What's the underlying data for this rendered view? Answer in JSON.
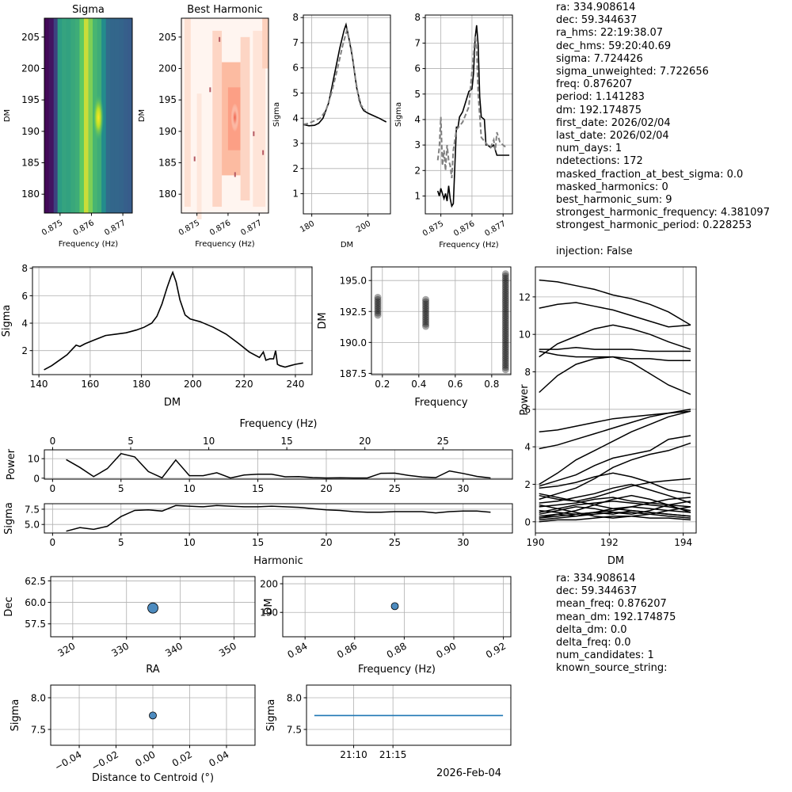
{
  "info_top": {
    "lines": [
      "ra: 334.908614",
      "dec: 59.344637",
      "ra_hms: 22:19:38.07",
      "dec_hms: 59:20:40.69",
      "sigma: 7.724426",
      "sigma_unweighted: 7.722656",
      "freq: 0.876207",
      "period: 1.141283",
      "dm: 192.174875",
      "first_date: 2026/02/04",
      "last_date: 2026/02/04",
      "num_days: 1",
      "ndetections: 172",
      "masked_fraction_at_best_sigma: 0.0",
      "masked_harmonics: 0",
      "best_harmonic_sum: 9",
      "strongest_harmonic_frequency: 4.381097",
      "strongest_harmonic_period: 0.228253",
      "",
      "injection: False"
    ]
  },
  "info_bottom": {
    "lines": [
      "ra: 334.908614",
      "dec: 59.344637",
      "mean_freq: 0.876207",
      "mean_dm: 192.174875",
      "delta_dm: 0.0",
      "delta_freq: 0.0",
      "num_candidates: 1",
      "known_source_string:"
    ]
  },
  "colors": {
    "line": "#000000",
    "gray_dashed": "#808080",
    "marker": "#4d8bbf",
    "grid": "#b0b0b0",
    "blue_line": "#1f77b4"
  },
  "chart_data": [
    {
      "id": "sigma-heatmap",
      "type": "heatmap",
      "title": "Sigma",
      "xlabel": "Frequency (Hz)",
      "ylabel": "DM",
      "xlim": [
        0.8745,
        0.8773
      ],
      "ylim": [
        177,
        208
      ],
      "xticks": [
        "0.875",
        "0.876",
        "0.877"
      ],
      "yticks": [
        "180",
        "185",
        "190",
        "195",
        "200",
        "205"
      ],
      "colormap": "viridis",
      "columns": [
        0.05,
        0.12,
        0.2,
        0.55,
        0.58,
        0.57,
        0.6,
        0.62,
        0.75,
        0.92,
        0.8,
        0.66,
        0.62,
        0.48,
        0.35,
        0.33,
        0.33,
        0.32,
        0.3,
        0.29
      ]
    },
    {
      "id": "best-harmonic-heatmap",
      "type": "heatmap",
      "title": "Best Harmonic",
      "xlabel": "Frequency (Hz)",
      "ylabel": "DM",
      "xlim": [
        0.8745,
        0.8773
      ],
      "ylim": [
        177,
        208
      ],
      "xticks": [
        "0.875",
        "0.876",
        "0.877"
      ],
      "yticks": [
        "180",
        "185",
        "190",
        "195",
        "200",
        "205"
      ],
      "colormap": "reds"
    },
    {
      "id": "sigma-vs-dm-small",
      "type": "line",
      "xlabel": "DM",
      "ylabel": "Sigma",
      "xlim": [
        177,
        208
      ],
      "ylim": [
        0.2,
        8.1
      ],
      "xticks": [
        180,
        200
      ],
      "yticks": [
        1,
        2,
        3,
        4,
        5,
        6,
        7,
        8
      ],
      "series": [
        {
          "style": "solid",
          "x": [
            177,
            179,
            181,
            182.5,
            184,
            186,
            188,
            190,
            191.5,
            192.2,
            193,
            194.5,
            196,
            197.5,
            198.5,
            200,
            202,
            204,
            206.5
          ],
          "y": [
            3.75,
            3.7,
            3.72,
            3.8,
            4.0,
            4.6,
            5.7,
            6.8,
            7.5,
            7.72,
            7.3,
            6.4,
            5.2,
            4.5,
            4.3,
            4.2,
            4.1,
            4.0,
            3.85
          ]
        },
        {
          "style": "dashed",
          "x": [
            177,
            179,
            181,
            183,
            185,
            187,
            189,
            191,
            192.5,
            194,
            195.5,
            197,
            199
          ],
          "y": [
            3.75,
            3.8,
            3.9,
            4.0,
            4.3,
            5.0,
            5.9,
            6.9,
            7.5,
            6.8,
            5.6,
            4.6,
            4.3
          ]
        }
      ]
    },
    {
      "id": "sigma-vs-freq-small",
      "type": "line",
      "xlabel": "Frequency (Hz)",
      "ylabel": "Sigma",
      "xlim": [
        0.8745,
        0.8773
      ],
      "ylim": [
        0.3,
        8.1
      ],
      "xticks": [
        "0.875",
        "0.876",
        "0.877"
      ],
      "yticks": [
        1,
        2,
        3,
        4,
        5,
        6,
        7,
        8
      ],
      "series": [
        {
          "style": "solid",
          "x": [
            0.8749,
            0.87495,
            0.875,
            0.8751,
            0.87515,
            0.8752,
            0.87525,
            0.8753,
            0.87535,
            0.8754,
            0.8755,
            0.87555,
            0.8756,
            0.8757,
            0.8758,
            0.8759,
            0.876,
            0.87605,
            0.8761,
            0.87615,
            0.8762,
            0.87625,
            0.8763,
            0.8764,
            0.87645,
            0.8765,
            0.8766,
            0.8767,
            0.8768,
            0.8769,
            0.877,
            0.8771,
            0.8772
          ],
          "y": [
            1.2,
            1.0,
            1.3,
            0.9,
            1.1,
            0.8,
            1.4,
            0.9,
            0.6,
            0.7,
            3.7,
            3.7,
            4.1,
            4.3,
            4.7,
            5.1,
            5.2,
            5.8,
            7.2,
            7.7,
            6.9,
            4.9,
            4.1,
            4.0,
            3.0,
            3.0,
            2.9,
            3.0,
            2.6,
            2.6,
            2.6,
            2.6,
            2.6
          ]
        },
        {
          "style": "dashed",
          "x": [
            0.8749,
            0.87495,
            0.875,
            0.87505,
            0.8751,
            0.87515,
            0.8752,
            0.87525,
            0.8753,
            0.87535,
            0.8754,
            0.8755,
            0.8757,
            0.8759,
            0.8761,
            0.87615,
            0.8762,
            0.8763,
            0.8765,
            0.8766,
            0.8767,
            0.87675,
            0.8768,
            0.8769,
            0.877,
            0.8771
          ],
          "y": [
            2.4,
            2.9,
            4.1,
            2.2,
            2.8,
            2.0,
            3.0,
            2.4,
            2.2,
            1.7,
            2.8,
            3.6,
            3.9,
            4.5,
            7.3,
            6.8,
            5.0,
            3.3,
            3.0,
            2.9,
            3.2,
            2.8,
            3.5,
            3.1,
            3.0,
            2.9
          ]
        }
      ]
    },
    {
      "id": "sigma-vs-dm-wide",
      "type": "line",
      "xlabel": "DM",
      "ylabel": "Sigma",
      "xlim": [
        137.5,
        246.5
      ],
      "ylim": [
        0.25,
        8.1
      ],
      "xticks": [
        140,
        160,
        180,
        200,
        220,
        240
      ],
      "yticks": [
        2,
        4,
        6,
        8
      ],
      "series": [
        {
          "style": "solid",
          "x": [
            142,
            145,
            148,
            151,
            153,
            154.5,
            156,
            158,
            162,
            166,
            170,
            174,
            178,
            181,
            184,
            186,
            188,
            190,
            191.5,
            192.2,
            193.5,
            195,
            197,
            199,
            203,
            208,
            213,
            218,
            222,
            226,
            227.5,
            228.5,
            230,
            231.5,
            232.3,
            233,
            234,
            236,
            238,
            240,
            243
          ],
          "y": [
            0.6,
            0.9,
            1.3,
            1.7,
            2.1,
            2.4,
            2.3,
            2.5,
            2.8,
            3.1,
            3.2,
            3.3,
            3.5,
            3.7,
            4.0,
            4.5,
            5.4,
            6.6,
            7.4,
            7.7,
            7.0,
            5.7,
            4.6,
            4.3,
            4.1,
            3.7,
            3.2,
            2.5,
            1.9,
            1.5,
            1.9,
            1.3,
            1.4,
            1.4,
            2.0,
            1.0,
            0.9,
            0.8,
            0.9,
            1.0,
            1.1
          ]
        }
      ]
    },
    {
      "id": "dm-vs-frequency-scatter",
      "type": "scatter",
      "xlabel": "Frequency",
      "ylabel": "DM",
      "xlim": [
        0.14,
        0.905
      ],
      "ylim": [
        187.4,
        196.1
      ],
      "xticks": [
        "0.2",
        "0.4",
        "0.6",
        "0.8"
      ],
      "yticks": [
        "187.5",
        "190.0",
        "192.5",
        "195.0"
      ],
      "columns": [
        {
          "x": 0.175,
          "y_min": 192.2,
          "y_max": 193.7
        },
        {
          "x": 0.438,
          "y_min": 191.3,
          "y_max": 193.5
        },
        {
          "x": 0.876,
          "y_min": 187.8,
          "y_max": 195.6
        }
      ]
    },
    {
      "id": "power-vs-dm",
      "type": "line",
      "xlabel": "DM",
      "ylabel": "Power",
      "xlim": [
        190.0,
        194.35
      ],
      "ylim": [
        -0.6,
        13.6
      ],
      "xticks": [
        190,
        192,
        194
      ],
      "yticks": [
        0,
        2,
        4,
        6,
        8,
        10,
        12
      ],
      "x": [
        190.1,
        190.6,
        191.1,
        191.6,
        192.1,
        192.6,
        193.1,
        193.6,
        194.2
      ],
      "series": [
        {
          "values": [
            12.9,
            12.8,
            12.6,
            12.4,
            12.1,
            11.9,
            11.6,
            11.2,
            10.5
          ]
        },
        {
          "values": [
            11.4,
            11.6,
            11.7,
            11.5,
            11.3,
            11.0,
            10.7,
            10.4,
            10.5
          ]
        },
        {
          "values": [
            9.2,
            9.2,
            9.3,
            9.2,
            9.2,
            9.2,
            9.1,
            9.1,
            9.1
          ]
        },
        {
          "values": [
            8.8,
            9.5,
            9.9,
            10.3,
            10.5,
            10.3,
            10.0,
            9.6,
            9.2
          ]
        },
        {
          "values": [
            6.9,
            7.8,
            8.4,
            8.7,
            8.8,
            8.5,
            7.9,
            7.3,
            6.8
          ]
        },
        {
          "values": [
            9.1,
            8.9,
            8.8,
            8.8,
            8.8,
            8.7,
            8.7,
            8.6,
            8.6
          ]
        },
        {
          "values": [
            4.8,
            4.9,
            5.1,
            5.3,
            5.5,
            5.6,
            5.7,
            5.8,
            5.9
          ]
        },
        {
          "values": [
            3.9,
            4.1,
            4.4,
            4.7,
            5.0,
            5.3,
            5.6,
            5.8,
            6.0
          ]
        },
        {
          "values": [
            2.0,
            2.6,
            3.3,
            3.8,
            4.3,
            4.8,
            5.2,
            5.6,
            5.9
          ]
        },
        {
          "values": [
            1.9,
            2.2,
            2.5,
            3.0,
            3.4,
            3.6,
            3.8,
            4.4,
            4.6
          ]
        },
        {
          "values": [
            1.2,
            1.5,
            1.8,
            2.3,
            2.9,
            3.3,
            3.6,
            3.8,
            4.2
          ]
        },
        {
          "values": [
            1.8,
            1.9,
            2.1,
            2.4,
            2.6,
            2.4,
            2.1,
            1.7,
            1.5
          ]
        },
        {
          "values": [
            1.4,
            1.2,
            1.1,
            1.3,
            1.6,
            1.9,
            2.1,
            2.2,
            2.3
          ]
        },
        {
          "values": [
            1.0,
            1.1,
            1.3,
            1.5,
            1.8,
            2.0,
            1.7,
            1.4,
            1.0
          ]
        },
        {
          "values": [
            0.8,
            0.9,
            1.0,
            1.2,
            1.3,
            1.1,
            1.0,
            0.9,
            0.8
          ]
        },
        {
          "values": [
            0.5,
            0.7,
            0.9,
            1.0,
            1.1,
            1.0,
            0.9,
            0.8,
            0.6
          ]
        },
        {
          "values": [
            0.3,
            0.4,
            0.6,
            0.9,
            1.2,
            1.4,
            1.2,
            0.9,
            0.5
          ]
        },
        {
          "values": [
            0.2,
            0.3,
            0.4,
            0.5,
            0.7,
            0.8,
            0.7,
            0.6,
            0.5
          ]
        },
        {
          "values": [
            0.1,
            0.2,
            0.3,
            0.4,
            0.5,
            0.5,
            0.4,
            0.3,
            0.2
          ]
        },
        {
          "values": [
            0.0,
            0.1,
            0.1,
            0.2,
            0.3,
            0.3,
            0.2,
            0.2,
            0.1
          ]
        },
        {
          "values": [
            0.6,
            0.5,
            0.4,
            0.5,
            0.6,
            0.8,
            1.0,
            1.2,
            1.3
          ]
        },
        {
          "values": [
            1.5,
            1.3,
            1.1,
            0.9,
            0.7,
            0.6,
            0.5,
            0.4,
            0.3
          ]
        },
        {
          "values": [
            0.4,
            0.6,
            0.8,
            0.7,
            0.5,
            0.4,
            0.6,
            0.9,
            1.1
          ]
        },
        {
          "values": [
            0.9,
            0.7,
            0.5,
            0.3,
            0.2,
            0.3,
            0.4,
            0.6,
            0.8
          ]
        },
        {
          "values": [
            0.2,
            0.4,
            0.3,
            0.5,
            0.4,
            0.6,
            0.5,
            0.4,
            0.3
          ]
        }
      ]
    },
    {
      "id": "power-vs-harmonic",
      "type": "line",
      "xlabel": "",
      "ylabel": "Power",
      "top_xlabel": "Frequency (Hz)",
      "xlim": [
        -0.6,
        33.6
      ],
      "ylim": [
        -0.5,
        14.5
      ],
      "xticks": [
        0,
        5,
        10,
        15,
        20,
        25,
        30
      ],
      "top_xlim": [
        -0.53,
        29.45
      ],
      "top_xticks": [
        0,
        5,
        10,
        15,
        20,
        25
      ],
      "yticks": [
        0,
        10
      ],
      "x": [
        1,
        2,
        3,
        4,
        5,
        6,
        7,
        8,
        9,
        10,
        11,
        12,
        13,
        14,
        15,
        16,
        17,
        18,
        19,
        20,
        21,
        22,
        23,
        24,
        25,
        26,
        27,
        28,
        29,
        30,
        31,
        32
      ],
      "values": [
        9.5,
        5.5,
        0.8,
        4.9,
        12.6,
        10.9,
        3.4,
        0.2,
        9.3,
        1.3,
        1.3,
        2.8,
        0.1,
        1.6,
        2.0,
        2.0,
        0.7,
        0.8,
        0.3,
        0.1,
        0.2,
        0.1,
        0.1,
        2.5,
        2.6,
        1.4,
        0.6,
        0.3,
        3.7,
        2.4,
        0.9,
        0.1
      ]
    },
    {
      "id": "sigma-vs-harmonic",
      "type": "line",
      "xlabel": "Harmonic",
      "ylabel": "Sigma",
      "xlim": [
        -0.6,
        33.6
      ],
      "ylim": [
        3.6,
        8.4
      ],
      "xticks": [
        0,
        5,
        10,
        15,
        20,
        25,
        30
      ],
      "yticks": [
        "5.0",
        "7.5"
      ],
      "x": [
        1,
        2,
        3,
        4,
        5,
        6,
        7,
        8,
        9,
        10,
        11,
        12,
        13,
        14,
        15,
        16,
        17,
        18,
        19,
        20,
        21,
        22,
        23,
        24,
        25,
        26,
        27,
        28,
        29,
        30,
        31,
        32
      ],
      "values": [
        3.9,
        4.5,
        4.2,
        4.7,
        6.3,
        7.3,
        7.4,
        7.2,
        8.1,
        8.0,
        7.9,
        8.1,
        8.0,
        7.9,
        7.9,
        8.0,
        7.9,
        7.8,
        7.6,
        7.4,
        7.3,
        7.1,
        7.0,
        7.0,
        7.1,
        7.1,
        7.1,
        6.9,
        7.1,
        7.2,
        7.2,
        7.0
      ]
    },
    {
      "id": "dec-vs-ra",
      "type": "scatter",
      "xlabel": "RA",
      "ylabel": "Dec",
      "xlim": [
        315.9,
        353.9
      ],
      "ylim": [
        56.0,
        63.0
      ],
      "xticks": [
        320,
        330,
        340,
        350
      ],
      "yticks": [
        "57.5",
        "60.0",
        "62.5"
      ],
      "points": [
        {
          "x": 334.908614,
          "y": 59.344637
        }
      ]
    },
    {
      "id": "dm-vs-freq",
      "type": "scatter",
      "xlabel": "Frequency (Hz)",
      "ylabel": "DM",
      "xlim": [
        0.831,
        0.923
      ],
      "ylim": [
        181.5,
        202.5
      ],
      "xticks": [
        "0.84",
        "0.86",
        "0.88",
        "0.90",
        "0.92"
      ],
      "yticks": [
        190,
        200
      ],
      "points": [
        {
          "x": 0.876207,
          "y": 192.174875
        }
      ]
    },
    {
      "id": "sigma-vs-distance",
      "type": "scatter",
      "xlabel": "Distance to Centroid (°)",
      "ylabel": "Sigma",
      "xlim": [
        -0.0555,
        0.0555
      ],
      "ylim": [
        7.25,
        8.2
      ],
      "xticks": [
        "−0.04",
        "−0.02",
        "0.00",
        "0.02",
        "0.04"
      ],
      "yticks": [
        "7.5",
        "8.0"
      ],
      "points": [
        {
          "x": 0.0,
          "y": 7.72
        }
      ]
    },
    {
      "id": "sigma-vs-time",
      "type": "line",
      "xlabel": "2026-Feb-04",
      "ylabel": "Sigma",
      "xlim": [
        0,
        26
      ],
      "ylim": [
        7.25,
        8.2
      ],
      "xticks": [
        "21:10",
        "21:15"
      ],
      "xtick_values": [
        6,
        11
      ],
      "yticks": [
        "7.5",
        "8.0"
      ],
      "x": [
        1,
        25
      ],
      "values": [
        7.72,
        7.72
      ]
    }
  ]
}
